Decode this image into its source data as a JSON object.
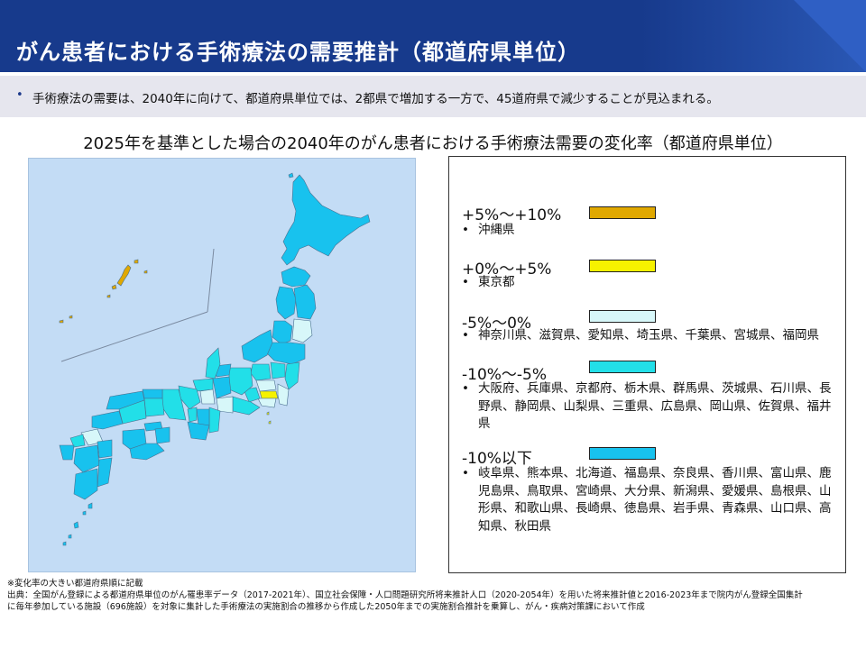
{
  "header": {
    "title": "がん患者における手術療法の需要推計（都道府県単位）"
  },
  "summary": {
    "bullet": "•",
    "text": "手術療法の需要は、2040年に向けて、都道府県単位では、2都県で増加する一方で、45道府県で減少することが見込まれる。"
  },
  "chart": {
    "title": "2025年を基準とした場合の2040年のがん患者における手術療法需要の変化率（都道府県単位）"
  },
  "colors": {
    "band_a": "#e0a800",
    "band_b": "#f6f200",
    "band_c": "#d7f7f9",
    "band_d": "#22dfe8",
    "band_e": "#18c2ee",
    "map_background": "#c3dcf5",
    "title_bar": "#173a8c"
  },
  "legend": {
    "bullet": "•",
    "bands": [
      {
        "range": "+5%～+10%",
        "color": "#e0a800",
        "prefectures": "沖縄県"
      },
      {
        "range": "+0%～+5%",
        "color": "#f6f200",
        "prefectures": "東京都"
      },
      {
        "range": "-5%～0%",
        "color": "#d7f7f9",
        "prefectures": "神奈川県、滋賀県、愛知県、埼玉県、千葉県、宮城県、福岡県"
      },
      {
        "range": "-10%～-5%",
        "color": "#22dfe8",
        "prefectures": "大阪府、兵庫県、京都府、栃木県、群馬県、茨城県、石川県、長野県、静岡県、山梨県、三重県、広島県、岡山県、佐賀県、福井県"
      },
      {
        "range": "-10%以下",
        "color": "#18c2ee",
        "prefectures": "岐阜県、熊本県、北海道、福島県、奈良県、香川県、富山県、鹿児島県、鳥取県、宮崎県、大分県、新潟県、愛媛県、島根県、山形県、和歌山県、長崎県、徳島県、岩手県、青森県、山口県、高知県、秋田県"
      }
    ]
  },
  "footnotes": {
    "note": "※変化率の大きい都道府県順に記載",
    "source_line1": "出典：全国がん登録による都道府県単位のがん罹患率データ（2017-2021年）、国立社会保障・人口問題研究所将来推計人口（2020-2054年）を用いた将来推計値と2016-2023年まで院内がん登録全国集計",
    "source_line2": "に毎年参加している施設（696施設）を対象に集計した手術療法の実施割合の推移から作成した2050年までの実施割合推計を乗算し、がん・疾病対策課において作成"
  }
}
